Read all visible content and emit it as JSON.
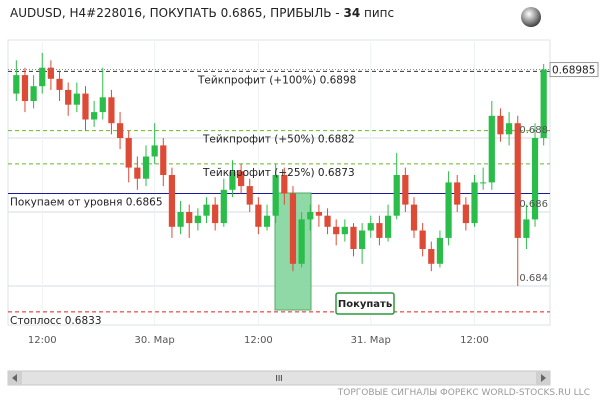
{
  "chart_data": {
    "type": "candlestick",
    "title_prefix": "AUDUSD, H4#228016, ПОКУПАТЬ 0.6865, ПРИБЫЛЬ -",
    "profit": 34,
    "title_suffix": "пипс",
    "footer": "ТОРГОВЫЕ СИГНАЛЫ ФОРЕКС WORLD-STOCKS.RU LLC",
    "signal_label": "Покупать",
    "scroll_grip": "III",
    "up_color": "#2bbd4a",
    "down_color": "#dd4a36",
    "ylim": [
      0.683,
      0.6906
    ],
    "yticks": [
      0.684,
      0.686,
      0.688
    ],
    "current_price": 0.68985,
    "categories": [
      null,
      null,
      null,
      "12:00",
      null,
      null,
      null,
      null,
      null,
      null,
      null,
      null,
      null,
      null,
      null,
      null,
      "30. Мар",
      null,
      null,
      null,
      null,
      null,
      null,
      null,
      null,
      null,
      null,
      null,
      "12:00",
      null,
      null,
      null,
      null,
      null,
      null,
      null,
      null,
      null,
      null,
      null,
      null,
      "31. Мар",
      null,
      null,
      null,
      null,
      null,
      null,
      null,
      null,
      null,
      null,
      null,
      "12:00",
      null,
      null,
      null,
      null,
      null,
      null,
      null,
      null
    ],
    "open": [
      0.6892,
      0.6897,
      0.689,
      0.6894,
      0.6899,
      0.6896,
      0.6893,
      0.6889,
      0.6892,
      0.6885,
      0.6887,
      0.6891,
      0.6884,
      0.688,
      0.6872,
      0.6869,
      0.6875,
      0.6878,
      0.687,
      0.6856,
      0.686,
      0.6857,
      0.6859,
      0.6862,
      0.6857,
      0.6866,
      0.6871,
      0.6867,
      0.6862,
      0.6856,
      0.6859,
      0.687,
      0.6865,
      0.6846,
      0.6858,
      0.686,
      0.6859,
      0.6856,
      0.6854,
      0.6856,
      0.685,
      0.6855,
      0.6857,
      0.6853,
      0.6859,
      0.687,
      0.6862,
      0.6855,
      0.685,
      0.6846,
      0.6853,
      0.6868,
      0.6862,
      0.6857,
      0.6868,
      0.6868,
      0.6886,
      0.6881,
      0.6884,
      0.6853,
      0.6858,
      0.688
    ],
    "high": [
      0.6901,
      0.6899,
      0.6897,
      0.6903,
      0.6901,
      0.6898,
      0.6895,
      0.6895,
      0.6894,
      0.689,
      0.6899,
      0.6893,
      0.6887,
      0.6882,
      0.6875,
      0.6878,
      0.6884,
      0.688,
      0.6872,
      0.6863,
      0.6862,
      0.6861,
      0.6864,
      0.6864,
      0.6869,
      0.6874,
      0.6873,
      0.6869,
      0.6864,
      0.6862,
      0.6873,
      0.6872,
      0.6867,
      0.686,
      0.6862,
      0.6862,
      0.6861,
      0.6858,
      0.6858,
      0.6857,
      0.6857,
      0.6859,
      0.6859,
      0.6862,
      0.6876,
      0.6872,
      0.6864,
      0.6857,
      0.6852,
      0.6855,
      0.6871,
      0.687,
      0.6864,
      0.687,
      0.6872,
      0.689,
      0.6888,
      0.6887,
      0.6886,
      0.6862,
      0.6884,
      0.69
    ],
    "low": [
      0.689,
      0.6887,
      0.6888,
      0.6892,
      0.6893,
      0.689,
      0.6886,
      0.6887,
      0.6882,
      0.6883,
      0.6885,
      0.6881,
      0.6877,
      0.6868,
      0.6866,
      0.6867,
      0.6873,
      0.6867,
      0.6853,
      0.6854,
      0.6853,
      0.6855,
      0.6857,
      0.6855,
      0.6856,
      0.6864,
      0.6865,
      0.686,
      0.6854,
      0.6855,
      0.6857,
      0.6862,
      0.6844,
      0.6845,
      0.6855,
      0.6856,
      0.6854,
      0.6851,
      0.6852,
      0.6848,
      0.6846,
      0.6853,
      0.6851,
      0.6852,
      0.6858,
      0.686,
      0.6853,
      0.6848,
      0.6844,
      0.6845,
      0.6851,
      0.686,
      0.6855,
      0.6856,
      0.6866,
      0.6866,
      0.6879,
      0.6878,
      0.684,
      0.685,
      0.6856,
      0.6878
    ],
    "close": [
      0.6897,
      0.689,
      0.6894,
      0.6899,
      0.6896,
      0.6893,
      0.6889,
      0.6892,
      0.6885,
      0.6887,
      0.6891,
      0.6884,
      0.688,
      0.6872,
      0.6869,
      0.6875,
      0.6878,
      0.687,
      0.6856,
      0.686,
      0.6857,
      0.6859,
      0.6862,
      0.6857,
      0.6866,
      0.6871,
      0.6867,
      0.6862,
      0.6856,
      0.6859,
      0.687,
      0.6865,
      0.6846,
      0.6858,
      0.686,
      0.6859,
      0.6856,
      0.6854,
      0.6856,
      0.685,
      0.6855,
      0.6857,
      0.6853,
      0.6859,
      0.687,
      0.6862,
      0.6855,
      0.685,
      0.6846,
      0.6853,
      0.6868,
      0.6862,
      0.6857,
      0.6868,
      0.6868,
      0.6886,
      0.6881,
      0.6884,
      0.6853,
      0.6858,
      0.688,
      0.68985
    ],
    "levels": [
      {
        "label": "Тейкпрофит (+100%) 0.6898",
        "value": 0.6898,
        "color": "#333333",
        "dash": true
      },
      {
        "label": "Тейкпрофит (+50%) 0.6882",
        "value": 0.6882,
        "color": "#66bb22",
        "dash": true
      },
      {
        "label": "Тейкпрофит (+25%) 0.6873",
        "value": 0.6873,
        "color": "#66bb22",
        "dash": true
      },
      {
        "label": "Покупаем от уровня 0.6865",
        "value": 0.6865,
        "color": "#1a1aa0",
        "dash": false
      },
      {
        "label": "Стоплосс 0.6833",
        "value": 0.6833,
        "color": "#dd2222",
        "dash": true
      }
    ]
  }
}
